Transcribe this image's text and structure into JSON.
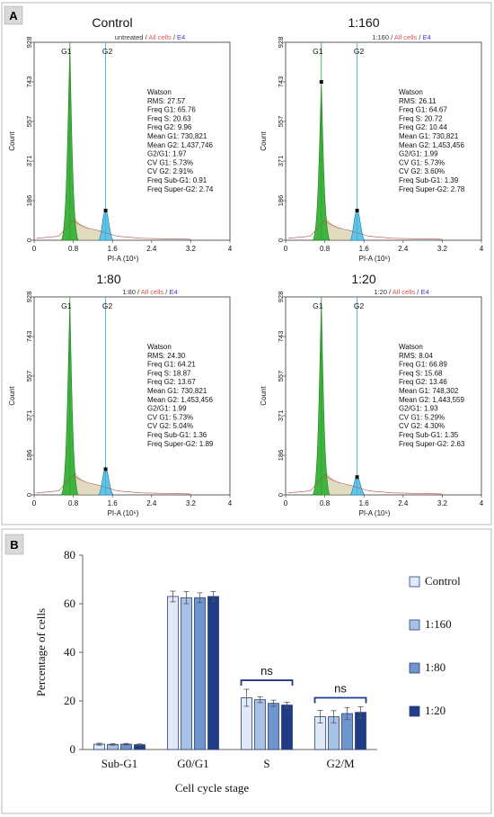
{
  "panel_a_label": "A",
  "panel_b_label": "B",
  "flow_panels": [
    {
      "title": "Control",
      "gating": [
        "untreated",
        "All cells",
        "E4"
      ],
      "gate_labels": [
        "G1",
        "G2"
      ],
      "ymax_label": "928",
      "yticks": [
        "928",
        "743",
        "557",
        "371",
        "186",
        "0"
      ],
      "xticks": [
        "0",
        "0.8",
        "1.6",
        "2.4",
        "3.2",
        "4"
      ],
      "ylabel": "Count",
      "xlabel": "PI-A (10⁶)",
      "watson": [
        "Watson",
        "RMS: 27.57",
        "Freq G1: 65.76",
        "Freq S: 20.63",
        "Freq G2: 9.96",
        "Mean G1: 730,821",
        "Mean G2: 1,437,746",
        "G2/G1: 1.97",
        "CV G1: 5.73%",
        "CV G2: 2.91%",
        "Freq Sub-G1: 0.91",
        "Freq Super-G2: 2.74"
      ]
    },
    {
      "title": "1:160",
      "gating": [
        "1:160",
        "All cells",
        "E4"
      ],
      "gate_labels": [
        "G1",
        "G2"
      ],
      "ymax_label": "928",
      "yticks": [
        "928",
        "743",
        "557",
        "371",
        "186",
        "0"
      ],
      "xticks": [
        "0",
        "0.8",
        "1.6",
        "2.4",
        "3.2",
        "4"
      ],
      "ylabel": "Count",
      "xlabel": "PI-A (10⁶)",
      "watson": [
        "Watson",
        "RMS: 26.11",
        "Freq G1: 64.67",
        "Freq S: 20.72",
        "Freq G2: 10.44",
        "Mean G1: 730,821",
        "Mean G2: 1,453,456",
        "G2/G1: 1.99",
        "CV G1: 5.73%",
        "CV G2: 3.60%",
        "Freq Sub-G1: 1.39",
        "Freq Super-G2: 2.78"
      ]
    },
    {
      "title": "1:80",
      "gating": [
        "1:80",
        "All cells",
        "E4"
      ],
      "gate_labels": [
        "G1",
        "G2"
      ],
      "ymax_label": "928",
      "yticks": [
        "928",
        "743",
        "557",
        "371",
        "186",
        "0"
      ],
      "xticks": [
        "0",
        "0.8",
        "1.6",
        "2.4",
        "3.2",
        "4"
      ],
      "ylabel": "Count",
      "xlabel": "PI-A (10⁶)",
      "watson": [
        "Watson",
        "RMS: 24.30",
        "Freq G1: 64.21",
        "Freq S: 18.87",
        "Freq G2: 13.67",
        "Mean G1: 730,821",
        "Mean G2: 1,453,456",
        "G2/G1: 1.99",
        "CV G1: 5.73%",
        "CV G2: 5.04%",
        "Freq Sub-G1: 1.36",
        "Freq Super-G2: 1.89"
      ]
    },
    {
      "title": "1:20",
      "gating": [
        "1:20",
        "All cells",
        "E4"
      ],
      "gate_labels": [
        "G1",
        "G2"
      ],
      "ymax_label": "928",
      "yticks": [
        "928",
        "743",
        "557",
        "371",
        "186",
        "0"
      ],
      "xticks": [
        "0",
        "0.8",
        "1.6",
        "2.4",
        "3.2",
        "4"
      ],
      "ylabel": "Count",
      "xlabel": "PI-A (10⁶)",
      "watson": [
        "Watson",
        "RMS: 8.04",
        "Freq G1: 66.89",
        "Freq S: 15.68",
        "Freq G2: 13.46",
        "Mean G1: 748,302",
        "Mean G2: 1,443,559",
        "G2/G1: 1.93",
        "CV G1: 5.29%",
        "CV G2: 4.30%",
        "Freq Sub-G1: 1.35",
        "Freq Super-G2: 2.63"
      ]
    }
  ],
  "chart_data": {
    "type": "bar",
    "categories": [
      "Sub-G1",
      "G0/G1",
      "S",
      "G2/M"
    ],
    "series": [
      {
        "name": "Control",
        "values": [
          2.2,
          63.0,
          21.3,
          13.5
        ],
        "errors": [
          0.4,
          2.2,
          3.5,
          2.6
        ],
        "color": "#dfe9f7"
      },
      {
        "name": "1:160",
        "values": [
          2.1,
          62.5,
          20.5,
          13.5
        ],
        "errors": [
          0.3,
          2.5,
          1.2,
          2.5
        ],
        "color": "#a8c2e6"
      },
      {
        "name": "1:80",
        "values": [
          2.2,
          62.5,
          19.0,
          14.8
        ],
        "errors": [
          0.3,
          2.0,
          1.3,
          2.5
        ],
        "color": "#6f95cf"
      },
      {
        "name": "1:20",
        "values": [
          2.0,
          63.0,
          18.3,
          15.3
        ],
        "errors": [
          0.3,
          2.0,
          1.2,
          2.3
        ],
        "color": "#1f3c87"
      }
    ],
    "xlabel": "Cell cycle stage",
    "ylabel": "Percentage of cells",
    "ylim": [
      0,
      80
    ],
    "yticks": [
      0,
      20,
      40,
      60,
      80
    ],
    "annotations": [
      {
        "category": "S",
        "text": "ns"
      },
      {
        "category": "G2/M",
        "text": "ns"
      }
    ],
    "legend_position": "right",
    "grid": false
  }
}
